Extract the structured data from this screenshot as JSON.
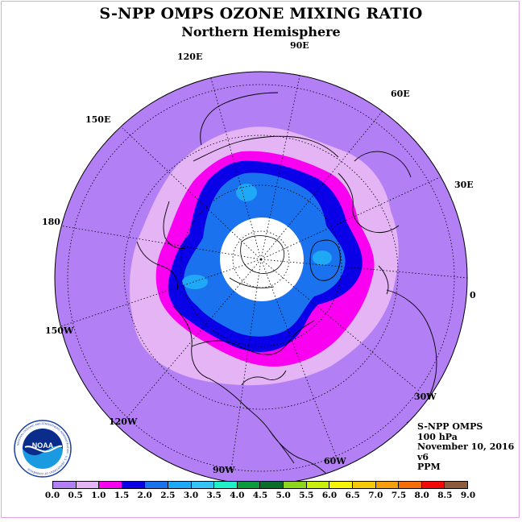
{
  "header": {
    "title": "S-NPP OMPS OZONE MIXING RATIO",
    "subtitle": "Northern Hemisphere"
  },
  "map": {
    "projection": "north-polar-stereographic",
    "longitude_labels": {
      "lon_0": "0",
      "lon_30e": "30E",
      "lon_60e": "60E",
      "lon_90e": "90E",
      "lon_120e": "120E",
      "lon_150e": "150E",
      "lon_180": "180",
      "lon_150w": "150W",
      "lon_120w": "120W",
      "lon_90w": "90W",
      "lon_60w": "60W",
      "lon_30w": "30W"
    },
    "colors": {
      "background_band": "#b37ff5",
      "band_0_5_1_0": "#e4b4f5",
      "band_1_0_1_5": "#fa00f0",
      "band_1_5_2_0": "#0a00e8",
      "band_2_0_2_5": "#1a72ef",
      "band_2_5_3_0": "#1ea8f5",
      "no_data_center": "#ffffff"
    }
  },
  "info": {
    "instrument": "S-NPP OMPS",
    "level": "100 hPa",
    "date": "November 10, 2016",
    "version": "v6",
    "units": "PPM"
  },
  "logo": {
    "text": "NOAA",
    "ring_text": "NATIONAL OCEANIC AND ATMOSPHERIC ADMINISTRATION · U.S. DEPARTMENT OF COMMERCE"
  },
  "colorbar": {
    "ticks": [
      "0.0",
      "0.5",
      "1.0",
      "1.5",
      "2.0",
      "2.5",
      "3.0",
      "3.5",
      "4.0",
      "4.5",
      "5.0",
      "5.5",
      "6.0",
      "6.5",
      "7.0",
      "7.5",
      "8.0",
      "8.5",
      "9.0"
    ],
    "colors": [
      "#b37ff5",
      "#e4b4f5",
      "#fa00f0",
      "#0a00e8",
      "#1a72ef",
      "#1ea8f5",
      "#36c4f7",
      "#1ef0c8",
      "#0a9c3c",
      "#0a6e28",
      "#8ed61e",
      "#c8f00a",
      "#f5f50a",
      "#f5c80a",
      "#f5a00a",
      "#f56e0a",
      "#f50a0a",
      "#8c5a3c"
    ]
  }
}
